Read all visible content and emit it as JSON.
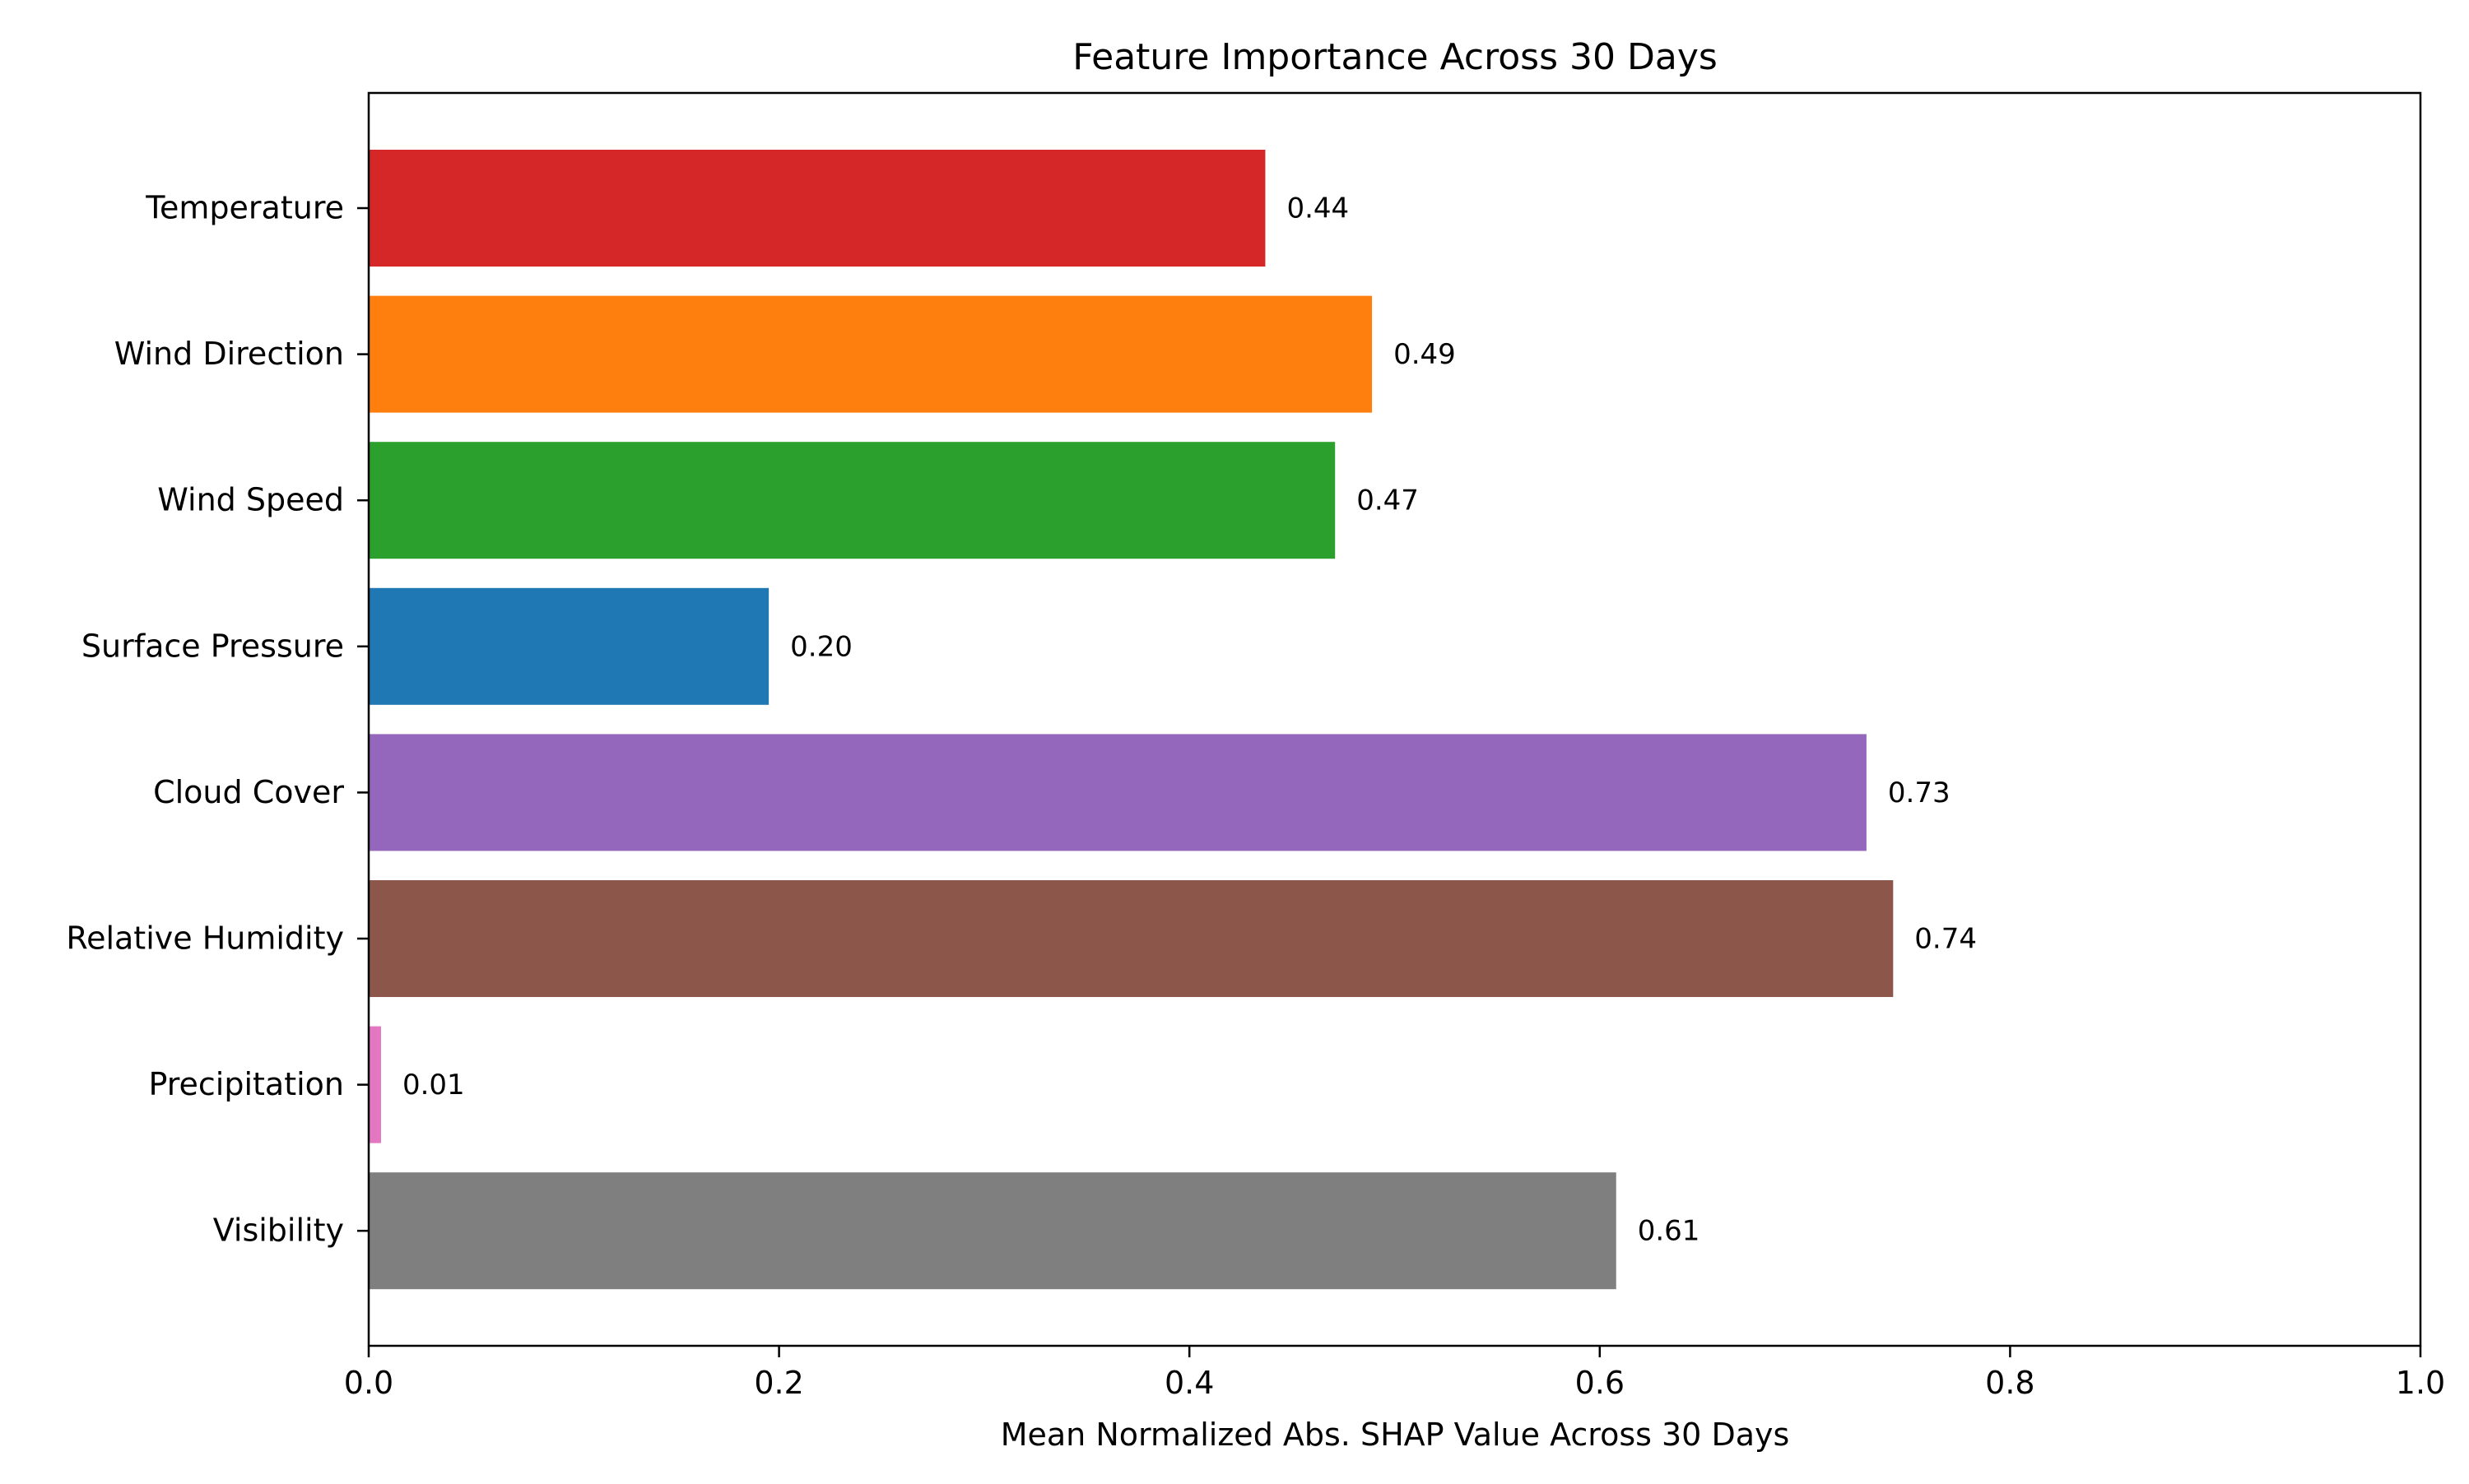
{
  "chart_data": {
    "type": "bar",
    "orientation": "horizontal",
    "title": "Feature Importance Across 30 Days",
    "xlabel": "Mean Normalized Abs. SHAP Value Across 30 Days",
    "ylabel": "",
    "xlim": [
      0,
      1.0
    ],
    "xticks": [
      {
        "value": 0.0,
        "label": "0.0"
      },
      {
        "value": 0.2,
        "label": "0.2"
      },
      {
        "value": 0.4,
        "label": "0.4"
      },
      {
        "value": 0.6,
        "label": "0.6"
      },
      {
        "value": 0.8,
        "label": "0.8"
      },
      {
        "value": 1.0,
        "label": "1.0"
      }
    ],
    "grid": false,
    "categories": [
      "Temperature",
      "Wind Direction",
      "Wind Speed",
      "Surface Pressure",
      "Cloud Cover",
      "Relative Humidity",
      "Precipitation",
      "Visibility"
    ],
    "values": [
      0.437,
      0.489,
      0.471,
      0.195,
      0.73,
      0.743,
      0.006,
      0.608
    ],
    "value_labels": [
      "0.44",
      "0.49",
      "0.47",
      "0.20",
      "0.73",
      "0.74",
      "0.01",
      "0.61"
    ],
    "colors": [
      "#d62728",
      "#ff7f0e",
      "#2ca02c",
      "#1f77b4",
      "#9467bd",
      "#8c564b",
      "#e377c2",
      "#7f7f7f"
    ]
  }
}
